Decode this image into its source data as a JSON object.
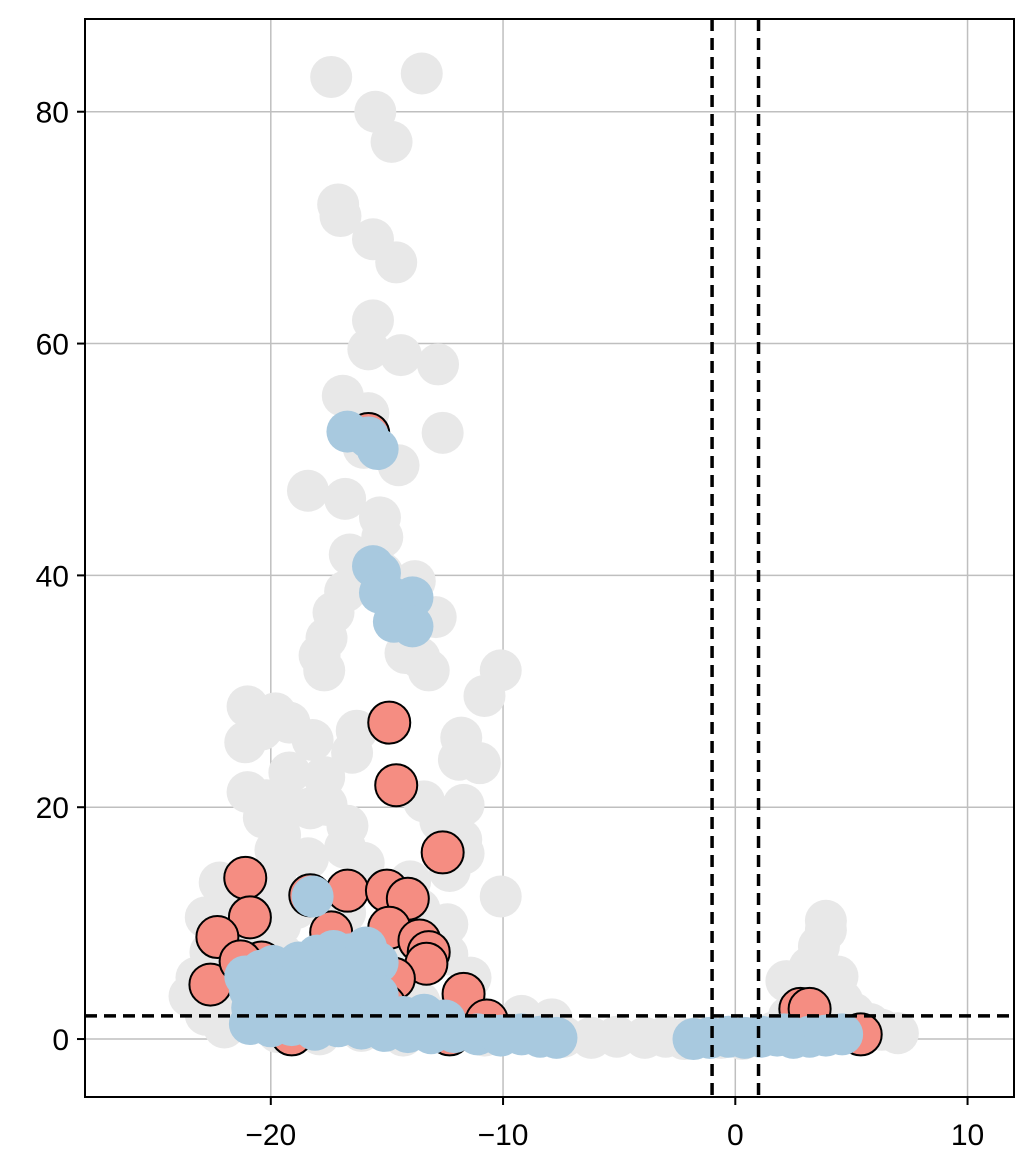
{
  "chart_data": {
    "type": "scatter",
    "title": "",
    "xlabel": "",
    "ylabel": "",
    "xlim": [
      -28,
      12
    ],
    "ylim": [
      -5,
      88
    ],
    "x_ticks": [
      -20,
      -10,
      0,
      10
    ],
    "y_ticks": [
      0,
      20,
      40,
      60,
      80
    ],
    "x_tick_labels": [
      "−20",
      "−10",
      "0",
      "10"
    ],
    "y_tick_labels": [
      "0",
      "20",
      "40",
      "60",
      "80"
    ],
    "grid": true,
    "legend": "none",
    "threshold_lines": {
      "vertical": [
        -1,
        1
      ],
      "horizontal": [
        2
      ]
    },
    "colors": {
      "background_points": "#e8e8e8",
      "red_points": "#f58d82",
      "blue_points": "#a8c9df",
      "grid": "#bfbfbf",
      "threshold": "#000000"
    },
    "series": [
      {
        "color_key": "background_points",
        "outlined": false,
        "points": [
          [
            -17.4,
            83
          ],
          [
            -13.5,
            83.3
          ],
          [
            -15.5,
            80
          ],
          [
            -14.8,
            77.4
          ],
          [
            -17.1,
            72
          ],
          [
            -17,
            71
          ],
          [
            -15.6,
            69
          ],
          [
            -14.6,
            67
          ],
          [
            -15.6,
            62
          ],
          [
            -15.8,
            59.5
          ],
          [
            -14.4,
            59
          ],
          [
            -12.8,
            58.2
          ],
          [
            -16.9,
            55.5
          ],
          [
            -15.8,
            54
          ],
          [
            -12.6,
            52.3
          ],
          [
            -16,
            51
          ],
          [
            -14.5,
            49.5
          ],
          [
            -18.4,
            47.3
          ],
          [
            -16.8,
            46.6
          ],
          [
            -15.3,
            45
          ],
          [
            -15.2,
            43.3
          ],
          [
            -16.6,
            41.8
          ],
          [
            -15.2,
            40.2
          ],
          [
            -13.8,
            39.5
          ],
          [
            -16.8,
            38.6
          ],
          [
            -17.3,
            36.8
          ],
          [
            -12.9,
            36.4
          ],
          [
            -17.6,
            34.6
          ],
          [
            -17.9,
            33.1
          ],
          [
            -14.2,
            33.3
          ],
          [
            -13.6,
            32.9
          ],
          [
            -13.2,
            31.8
          ],
          [
            -17.7,
            31.8
          ],
          [
            -10.1,
            31.8
          ],
          [
            -10.8,
            29.6
          ],
          [
            -21,
            28.7
          ],
          [
            -19.8,
            28.1
          ],
          [
            -19.2,
            27.3
          ],
          [
            -20.4,
            26.7
          ],
          [
            -21.1,
            25.6
          ],
          [
            -16.3,
            26.6
          ],
          [
            -11.8,
            26
          ],
          [
            -18.2,
            25.8
          ],
          [
            -16.5,
            24.7
          ],
          [
            -11.9,
            24.1
          ],
          [
            -11,
            23.8
          ],
          [
            -19.2,
            23
          ],
          [
            -17.7,
            22.6
          ],
          [
            -21,
            21.3
          ],
          [
            -20.2,
            20.6
          ],
          [
            -19.3,
            19.8
          ],
          [
            -18.3,
            19.9
          ],
          [
            -17.6,
            20.2
          ],
          [
            -13.4,
            20.5
          ],
          [
            -11.7,
            20.2
          ],
          [
            -20.3,
            19.1
          ],
          [
            -16.7,
            18.4
          ],
          [
            -12.7,
            18.8
          ],
          [
            -19.6,
            17.6
          ],
          [
            -11.8,
            17.2
          ],
          [
            -19.8,
            16.3
          ],
          [
            -16.8,
            16.5
          ],
          [
            -11.7,
            16
          ],
          [
            -18.4,
            15.6
          ],
          [
            -16,
            15.2
          ],
          [
            -12.3,
            14.5
          ],
          [
            -19.8,
            14.2
          ],
          [
            -22.2,
            13.5
          ],
          [
            -14,
            13.6
          ],
          [
            -10.1,
            12.3
          ],
          [
            -21.7,
            12.4
          ],
          [
            -20.3,
            11.8
          ],
          [
            -18.9,
            11.3
          ],
          [
            -16.8,
            10.9
          ],
          [
            -13.6,
            11.2
          ],
          [
            -22.8,
            10.5
          ],
          [
            -21,
            9.6
          ],
          [
            -19.6,
            9.8
          ],
          [
            -12.4,
            9.9
          ],
          [
            -17.2,
            8.9
          ],
          [
            -22.6,
            7.5
          ],
          [
            -21.5,
            7.2
          ],
          [
            -19.5,
            7.3
          ],
          [
            -14.2,
            7.7
          ],
          [
            -12.4,
            7.3
          ],
          [
            -23.2,
            5.3
          ],
          [
            -20.1,
            5.6
          ],
          [
            -11.4,
            5.3
          ],
          [
            -23.5,
            3.7
          ],
          [
            -22.2,
            3.5
          ],
          [
            -19.3,
            3.4
          ],
          [
            -16.6,
            3.7
          ],
          [
            -13.6,
            3.2
          ],
          [
            -11.8,
            3.2
          ],
          [
            -22.8,
            2.1
          ],
          [
            -20.6,
            2.6
          ],
          [
            -17.4,
            1.9
          ],
          [
            -14.1,
            2
          ],
          [
            -11.4,
            2.4
          ],
          [
            -9.2,
            2
          ],
          [
            -7.9,
            1.7
          ],
          [
            -22,
            1
          ],
          [
            -19.7,
            0.6
          ],
          [
            -17.9,
            0.4
          ],
          [
            -16.1,
            0.7
          ],
          [
            -14.3,
            0.3
          ],
          [
            -12.6,
            0.5
          ],
          [
            -10.8,
            0.3
          ],
          [
            -9,
            0.6
          ],
          [
            -7.4,
            0.2
          ],
          [
            -6.2,
            0.1
          ],
          [
            -5.1,
            0.2
          ],
          [
            -3.9,
            0.1
          ],
          [
            -3,
            0.2
          ],
          [
            -2.2,
            0
          ],
          [
            -1.5,
            0.2
          ],
          [
            -0.6,
            0.1
          ],
          [
            0.3,
            0
          ],
          [
            2.2,
            5
          ],
          [
            3.2,
            6.2
          ],
          [
            3.6,
            8
          ],
          [
            3.9,
            9.4
          ],
          [
            3.9,
            10.2
          ],
          [
            2.8,
            4.1
          ],
          [
            4.4,
            5.4
          ],
          [
            4.6,
            3.3
          ],
          [
            5.1,
            2.2
          ],
          [
            5.8,
            1.3
          ],
          [
            6.3,
            0.8
          ],
          [
            7,
            0.5
          ],
          [
            4.9,
            1.6
          ],
          [
            2.3,
            1.9
          ],
          [
            1.7,
            0.6
          ],
          [
            3,
            0.9
          ]
        ]
      },
      {
        "color_key": "red_points",
        "outlined": true,
        "points": [
          [
            -15.8,
            52.2
          ],
          [
            -14.9,
            27.3
          ],
          [
            -14.6,
            21.9
          ],
          [
            -12.6,
            16.1
          ],
          [
            -21.1,
            13.9
          ],
          [
            -18.3,
            12.4
          ],
          [
            -16.7,
            12.8
          ],
          [
            -15,
            12.8
          ],
          [
            -20.9,
            10.5
          ],
          [
            -14.1,
            12.1
          ],
          [
            -14.9,
            9.6
          ],
          [
            -22.3,
            8.8
          ],
          [
            -13.6,
            8.5
          ],
          [
            -13.2,
            7.5
          ],
          [
            -13.3,
            6.5
          ],
          [
            -17.4,
            9.2
          ],
          [
            -20.4,
            6.6
          ],
          [
            -18.9,
            6.2
          ],
          [
            -16.5,
            5.8
          ],
          [
            -14.7,
            5.2
          ],
          [
            -22.6,
            4.7
          ],
          [
            -11.7,
            3.9
          ],
          [
            -10.7,
            1.6
          ],
          [
            -20,
            4.5
          ],
          [
            -17.6,
            3.6
          ],
          [
            -15.1,
            2.9
          ],
          [
            -19.1,
            0.4
          ],
          [
            -12.3,
            0.4
          ],
          [
            2.8,
            2.6
          ],
          [
            3.2,
            2.6
          ],
          [
            5.4,
            0.4
          ],
          [
            -21.3,
            6.7
          ]
        ]
      },
      {
        "color_key": "blue_points",
        "outlined": false,
        "points": [
          [
            -16.7,
            52.4
          ],
          [
            -15.8,
            51.9
          ],
          [
            -15.4,
            50.9
          ],
          [
            -15.6,
            40.8
          ],
          [
            -15.3,
            40.2
          ],
          [
            -15.3,
            38.5
          ],
          [
            -14.9,
            38.2
          ],
          [
            -13.9,
            38.1
          ],
          [
            -14.7,
            36
          ],
          [
            -13.9,
            35.6
          ],
          [
            -18.2,
            12.3
          ],
          [
            -21.1,
            5.4
          ],
          [
            -20.4,
            5.9
          ],
          [
            -19.9,
            6.3
          ],
          [
            -18.8,
            6.6
          ],
          [
            -18,
            7.2
          ],
          [
            -17.3,
            7.6
          ],
          [
            -16.6,
            7.3
          ],
          [
            -15.9,
            7.9
          ],
          [
            -15.4,
            6.6
          ],
          [
            -20.9,
            4.2
          ],
          [
            -20.1,
            3.8
          ],
          [
            -19.3,
            4.5
          ],
          [
            -18.5,
            4.9
          ],
          [
            -17.8,
            5.2
          ],
          [
            -16.9,
            5.1
          ],
          [
            -16.1,
            4.6
          ],
          [
            -15.4,
            3.8
          ],
          [
            -20.8,
            2.7
          ],
          [
            -19.9,
            2.4
          ],
          [
            -19,
            2.9
          ],
          [
            -18.1,
            3.1
          ],
          [
            -17.1,
            3.3
          ],
          [
            -16.2,
            2.7
          ],
          [
            -15.2,
            2.2
          ],
          [
            -14.3,
            1.9
          ],
          [
            -13.4,
            2.1
          ],
          [
            -12.5,
            1.6
          ],
          [
            -20.9,
            1.3
          ],
          [
            -20,
            1.1
          ],
          [
            -19.1,
            1.2
          ],
          [
            -18.1,
            0.8
          ],
          [
            -17.1,
            1.1
          ],
          [
            -16.1,
            0.9
          ],
          [
            -15.1,
            0.7
          ],
          [
            -14.1,
            0.6
          ],
          [
            -13.1,
            0.5
          ],
          [
            -12.1,
            0.6
          ],
          [
            -11.1,
            0.4
          ],
          [
            -10.1,
            0.3
          ],
          [
            -9.2,
            0.4
          ],
          [
            -8.4,
            0.2
          ],
          [
            -7.7,
            0.1
          ],
          [
            -1.8,
            0
          ],
          [
            -1.1,
            0.1
          ],
          [
            -0.3,
            0.2
          ],
          [
            0.4,
            0.1
          ],
          [
            1.1,
            0.2
          ],
          [
            1.8,
            0.3
          ],
          [
            2.5,
            0.1
          ],
          [
            3.2,
            0.2
          ],
          [
            3.9,
            0.3
          ],
          [
            4.6,
            0.4
          ],
          [
            2.1,
            0.4
          ]
        ]
      }
    ]
  }
}
